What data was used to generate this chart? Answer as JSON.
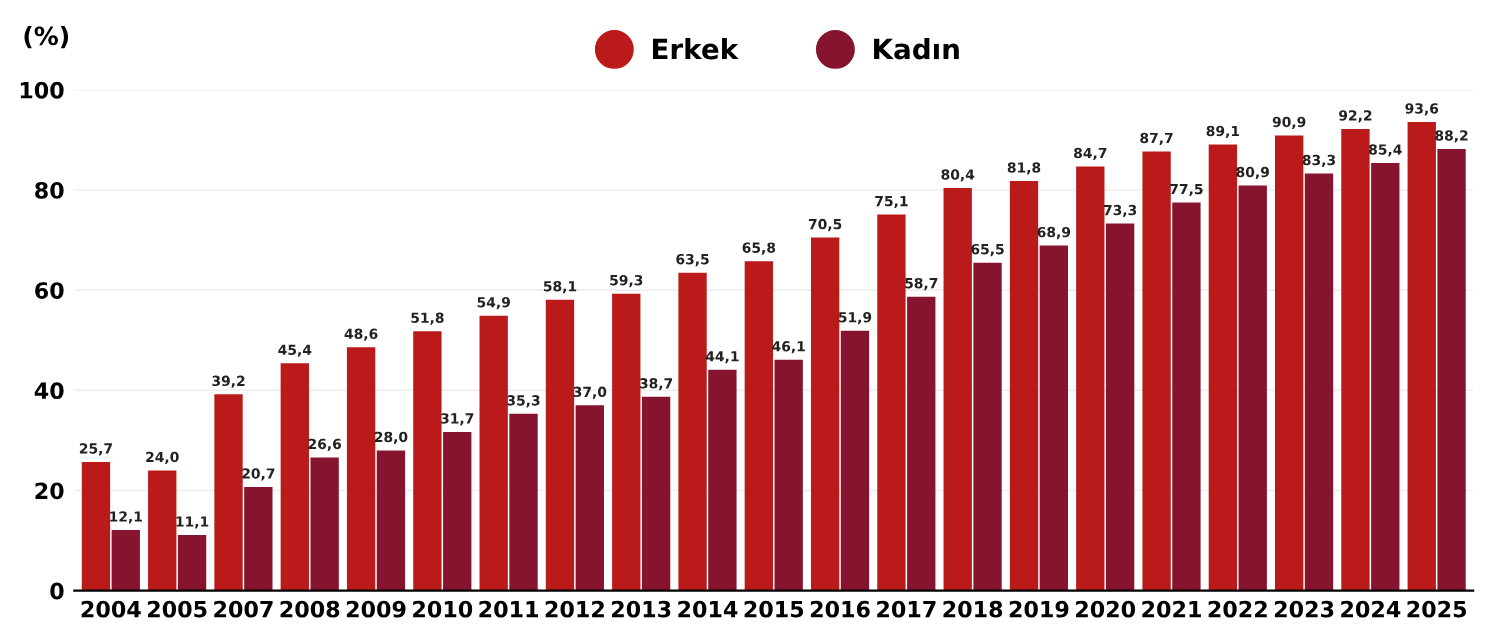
{
  "chart_data": {
    "type": "bar",
    "ylabel": "(%)",
    "categories": [
      "2004",
      "2005",
      "2007",
      "2008",
      "2009",
      "2010",
      "2011",
      "2012",
      "2013",
      "2014",
      "2015",
      "2016",
      "2017",
      "2018",
      "2019",
      "2020",
      "2021",
      "2022",
      "2023",
      "2024",
      "2025"
    ],
    "series": [
      {
        "name": "Erkek",
        "color": "#bb1a1b",
        "values": [
          25.7,
          24.0,
          39.2,
          45.4,
          48.6,
          51.8,
          54.9,
          58.1,
          59.3,
          63.5,
          65.8,
          70.5,
          75.1,
          80.4,
          81.8,
          84.7,
          87.7,
          89.1,
          90.9,
          92.2,
          93.6
        ],
        "value_labels": [
          "25,7",
          "24,0",
          "39,2",
          "45,4",
          "48,6",
          "51,8",
          "54,9",
          "58,1",
          "59,3",
          "63,5",
          "65,8",
          "70,5",
          "75,1",
          "80,4",
          "81,8",
          "84,7",
          "87,7",
          "89,1",
          "90,9",
          "92,2",
          "93,6"
        ]
      },
      {
        "name": "Kadın",
        "color": "#87142e",
        "values": [
          12.1,
          11.1,
          20.7,
          26.6,
          28.0,
          31.7,
          35.3,
          37.0,
          38.7,
          44.1,
          46.1,
          51.9,
          58.7,
          65.5,
          68.9,
          73.3,
          77.5,
          80.9,
          83.3,
          85.4,
          88.2
        ],
        "value_labels": [
          "12,1",
          "11,1",
          "20,7",
          "26,6",
          "28,0",
          "31,7",
          "35,3",
          "37,0",
          "38,7",
          "44,1",
          "46,1",
          "51,9",
          "58,7",
          "65,5",
          "68,9",
          "73,3",
          "77,5",
          "80,9",
          "83,3",
          "85,4",
          "88,2"
        ]
      }
    ],
    "ylim": [
      0,
      100
    ],
    "yticks": [
      0,
      20,
      40,
      60,
      80,
      100
    ],
    "grid": "y",
    "legend": "top"
  }
}
